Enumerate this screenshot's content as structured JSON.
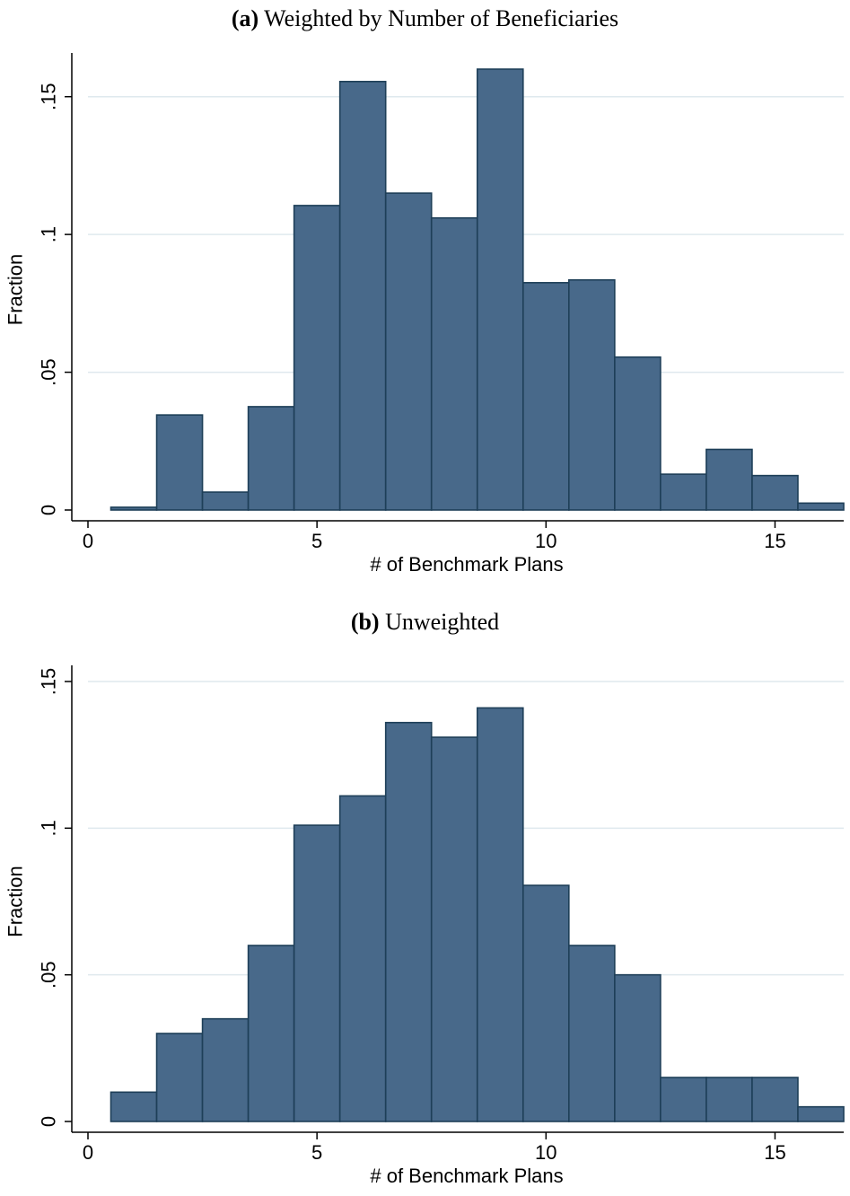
{
  "chart_data": [
    {
      "type": "bar",
      "title_prefix": "(a)",
      "title": "Weighted by Number of Beneficiaries",
      "xlabel": "# of Benchmark Plans",
      "ylabel": "Fraction",
      "xlim": [
        0,
        16.5
      ],
      "ylim": [
        0,
        0.16
      ],
      "xticks": [
        0,
        5,
        10,
        15
      ],
      "xtick_labels": [
        "0",
        "5",
        "10",
        "15"
      ],
      "yticks": [
        0,
        0.05,
        0.1,
        0.15
      ],
      "ytick_labels": [
        "0",
        ".05",
        ".1",
        ".15"
      ],
      "grid": true,
      "bin_width": 1,
      "categories": [
        1,
        2,
        3,
        4,
        5,
        6,
        7,
        8,
        9,
        10,
        11,
        12,
        13,
        14,
        15,
        16
      ],
      "values": [
        0.001,
        0.0345,
        0.0065,
        0.0375,
        0.1105,
        0.1555,
        0.115,
        0.106,
        0.16,
        0.0825,
        0.0835,
        0.0555,
        0.013,
        0.022,
        0.0125,
        0.0025
      ],
      "bar_color": "#48698a"
    },
    {
      "type": "bar",
      "title_prefix": "(b)",
      "title": "Unweighted",
      "xlabel": "# of Benchmark Plans",
      "ylabel": "Fraction",
      "xlim": [
        0,
        16.5
      ],
      "ylim": [
        0,
        0.15
      ],
      "xticks": [
        0,
        5,
        10,
        15
      ],
      "xtick_labels": [
        "0",
        "5",
        "10",
        "15"
      ],
      "yticks": [
        0,
        0.05,
        0.1,
        0.15
      ],
      "ytick_labels": [
        "0",
        ".05",
        ".1",
        ".15"
      ],
      "grid": true,
      "bin_width": 1,
      "categories": [
        1,
        2,
        3,
        4,
        5,
        6,
        7,
        8,
        9,
        10,
        11,
        12,
        13,
        14,
        15,
        16
      ],
      "values": [
        0.01,
        0.03,
        0.035,
        0.06,
        0.101,
        0.111,
        0.136,
        0.131,
        0.141,
        0.0805,
        0.06,
        0.05,
        0.015,
        0.015,
        0.015,
        0.005
      ],
      "bar_color": "#48698a"
    }
  ]
}
